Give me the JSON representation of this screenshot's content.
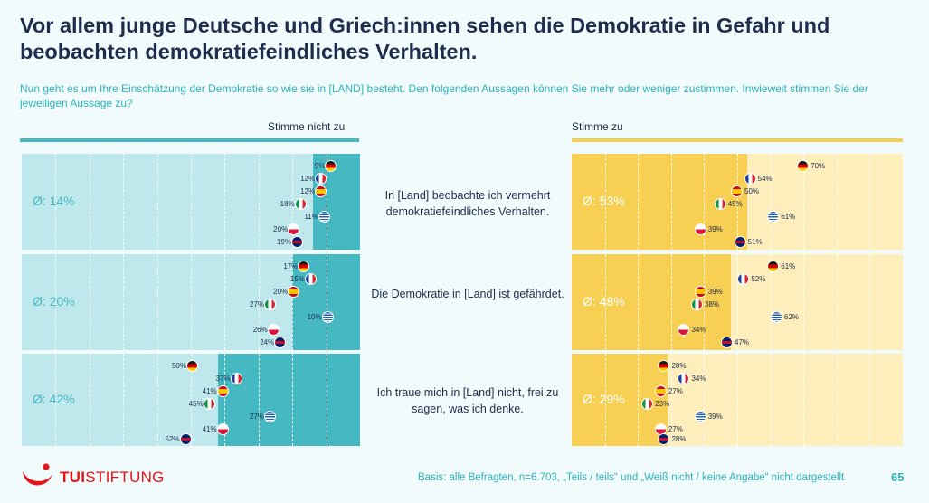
{
  "title": "Vor allem junge Deutsche und Griech:innen sehen die Demokratie in Gefahr und beobachten demokratiefeindliches Verhalten.",
  "subtitle": "Nun geht es um Ihre Einschätzung der Demokratie so wie sie in [LAND] besteht. Den folgenden Aussagen können Sie mehr oder weniger zustimmen. Inwieweit stimmen Sie der jeweiligen Aussage zu?",
  "headers": {
    "disagree": "Stimme nicht zu",
    "agree": "Stimme zu"
  },
  "colors": {
    "disagree_bg": "#bfe8ec",
    "disagree_bar": "#45b8c2",
    "disagree_line": "#45b8c2",
    "agree_bg": "#fdeebb",
    "agree_bar": "#f7cf52",
    "agree_line": "#f7cf52",
    "avg_text_agree": "#ffffff",
    "avg_text_disagree": "#ffffff"
  },
  "chart_data": {
    "type": "bar",
    "countries": [
      "Deutschland",
      "Frankreich",
      "Spanien",
      "Italien",
      "Griechenland",
      "Polen",
      "Großbritannien"
    ],
    "statements": [
      {
        "text": "In [Land] beobachte ich vermehrt demokratiefeindliches Verhalten.",
        "disagree": {
          "avg": 14,
          "avg_label": "Ø: 14%",
          "values": [
            9,
            12,
            12,
            18,
            11,
            20,
            19
          ]
        },
        "agree": {
          "avg": 53,
          "avg_label": "Ø: 53%",
          "values": [
            70,
            54,
            50,
            45,
            61,
            39,
            51
          ]
        }
      },
      {
        "text": "Die Demokratie in [Land] ist gefährdet.",
        "disagree": {
          "avg": 20,
          "avg_label": "Ø: 20%",
          "values": [
            17,
            15,
            20,
            27,
            10,
            26,
            24
          ]
        },
        "agree": {
          "avg": 48,
          "avg_label": "Ø: 48%",
          "values": [
            61,
            52,
            39,
            38,
            62,
            34,
            47
          ]
        }
      },
      {
        "text": "Ich traue mich in [Land] nicht, frei zu sagen, was ich denke.",
        "disagree": {
          "avg": 42,
          "avg_label": "Ø: 42%",
          "values": [
            50,
            37,
            41,
            45,
            27,
            41,
            52
          ]
        },
        "agree": {
          "avg": 29,
          "avg_label": "Ø: 29%",
          "values": [
            28,
            34,
            27,
            23,
            39,
            27,
            28
          ]
        }
      }
    ],
    "scale_max": 100,
    "grid": true
  },
  "logo": {
    "tui": "TUI",
    "stiftung": "STIFTUNG"
  },
  "footnote": "Basis: alle Befragten, n=6.703, „Teils / teils“ und „Weiß nicht / keine Angabe“ nicht dargestellt",
  "page_number": "65"
}
